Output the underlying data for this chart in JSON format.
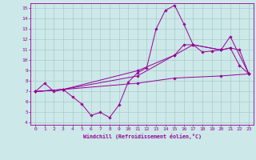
{
  "xlabel": "Windchill (Refroidissement éolien,°C)",
  "xlim": [
    -0.5,
    23.5
  ],
  "ylim": [
    3.8,
    15.5
  ],
  "yticks": [
    4,
    5,
    6,
    7,
    8,
    9,
    10,
    11,
    12,
    13,
    14,
    15
  ],
  "xticks": [
    0,
    1,
    2,
    3,
    4,
    5,
    6,
    7,
    8,
    9,
    10,
    11,
    12,
    13,
    14,
    15,
    16,
    17,
    18,
    19,
    20,
    21,
    22,
    23
  ],
  "bg_color": "#cce8e8",
  "grid_color": "#aacccc",
  "line_color": "#990099",
  "lines": [
    {
      "x": [
        0,
        1,
        2,
        3,
        4,
        5,
        6,
        7,
        8,
        9,
        10,
        11,
        12,
        13,
        14,
        15,
        16,
        17,
        18,
        19,
        20,
        21,
        22,
        23
      ],
      "y": [
        7.0,
        7.8,
        7.0,
        7.2,
        6.5,
        5.8,
        4.7,
        5.0,
        4.5,
        5.7,
        7.9,
        8.8,
        9.3,
        13.0,
        14.8,
        15.3,
        13.5,
        11.5,
        10.8,
        10.9,
        11.0,
        11.2,
        9.5,
        8.7
      ]
    },
    {
      "x": [
        0,
        3,
        11,
        15,
        17,
        20,
        21,
        22,
        23
      ],
      "y": [
        7.0,
        7.2,
        9.0,
        10.5,
        11.5,
        11.0,
        11.2,
        11.0,
        8.7
      ]
    },
    {
      "x": [
        0,
        3,
        11,
        15,
        16,
        17,
        20,
        21,
        23
      ],
      "y": [
        7.0,
        7.2,
        8.5,
        10.5,
        11.5,
        11.5,
        11.0,
        12.3,
        8.7
      ]
    },
    {
      "x": [
        0,
        3,
        11,
        15,
        20,
        23
      ],
      "y": [
        7.0,
        7.2,
        7.8,
        8.3,
        8.5,
        8.7
      ]
    }
  ]
}
